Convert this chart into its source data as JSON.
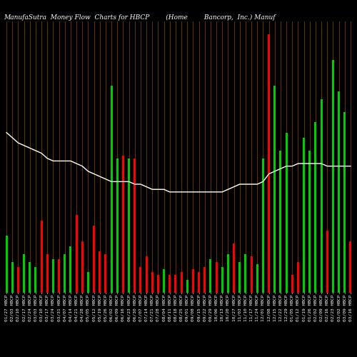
{
  "title": "ManufaSutra  Money Flow  Charts for HBCP        (Home        Bancorp,  Inc.) Manuf",
  "background_color": "#000000",
  "grid_color": "#6b3a00",
  "bar_colors": [
    "#00cc00",
    "#00cc00",
    "#ff0000",
    "#00cc00",
    "#00cc00",
    "#00cc00",
    "#ff0000",
    "#ff0000",
    "#00cc00",
    "#ff0000",
    "#00cc00",
    "#00cc00",
    "#ff0000",
    "#ff0000",
    "#00cc00",
    "#ff0000",
    "#ff0000",
    "#ff0000",
    "#00cc00",
    "#00cc00",
    "#ff0000",
    "#00cc00",
    "#ff0000",
    "#ff0000",
    "#ff0000",
    "#ff0000",
    "#ff0000",
    "#00cc00",
    "#ff0000",
    "#ff0000",
    "#ff0000",
    "#00cc00",
    "#ff0000",
    "#ff0000",
    "#ff0000",
    "#00cc00",
    "#ff0000",
    "#00cc00",
    "#00cc00",
    "#ff0000",
    "#00cc00",
    "#00cc00",
    "#ff0000",
    "#00cc00",
    "#00cc00",
    "#ff0000",
    "#00cc00",
    "#00cc00",
    "#00cc00",
    "#ff0000",
    "#ff0000",
    "#00cc00",
    "#00cc00",
    "#00cc00",
    "#00cc00",
    "#ff0000",
    "#00cc00",
    "#00cc00",
    "#00cc00",
    "#ff0000"
  ],
  "bar_heights": [
    0.22,
    0.12,
    0.1,
    0.15,
    0.12,
    0.1,
    0.28,
    0.15,
    0.13,
    0.13,
    0.15,
    0.18,
    0.3,
    0.2,
    0.08,
    0.26,
    0.16,
    0.15,
    0.8,
    0.52,
    0.53,
    0.52,
    0.52,
    0.1,
    0.14,
    0.08,
    0.07,
    0.09,
    0.07,
    0.07,
    0.08,
    0.05,
    0.09,
    0.08,
    0.1,
    0.13,
    0.12,
    0.1,
    0.15,
    0.19,
    0.12,
    0.15,
    0.14,
    0.11,
    0.52,
    1.0,
    0.8,
    0.55,
    0.62,
    0.07,
    0.12,
    0.6,
    0.55,
    0.66,
    0.75,
    0.24,
    0.9,
    0.78,
    0.7,
    0.2
  ],
  "line_color": "#ffffff",
  "line_data": [
    0.62,
    0.6,
    0.58,
    0.57,
    0.56,
    0.55,
    0.54,
    0.52,
    0.51,
    0.51,
    0.51,
    0.51,
    0.5,
    0.49,
    0.47,
    0.46,
    0.45,
    0.44,
    0.43,
    0.43,
    0.43,
    0.43,
    0.42,
    0.42,
    0.41,
    0.4,
    0.4,
    0.4,
    0.39,
    0.39,
    0.39,
    0.39,
    0.39,
    0.39,
    0.39,
    0.39,
    0.39,
    0.39,
    0.4,
    0.41,
    0.42,
    0.42,
    0.42,
    0.42,
    0.43,
    0.46,
    0.47,
    0.48,
    0.49,
    0.49,
    0.5,
    0.5,
    0.5,
    0.5,
    0.5,
    0.49,
    0.49,
    0.49,
    0.49,
    0.49
  ],
  "tick_labels": [
    "01/27 HBCP",
    "02/03 HBCP",
    "02/10 HBCP",
    "02/17 HBCP",
    "02/24 HBCP",
    "03/03 HBCP",
    "03/10 HBCP",
    "03/17 HBCP",
    "03/24 HBCP",
    "03/31 HBCP",
    "04/07 HBCP",
    "04/14 HBCP",
    "04/21 HBCP",
    "04/28 HBCP",
    "05/05 HBCP",
    "05/12 HBCP",
    "05/19 HBCP",
    "05/26 HBCP",
    "06/02 HBCP",
    "06/09 HBCP",
    "06/16 HBCP",
    "06/23 HBCP",
    "06/30 HBCP",
    "07/07 HBCP",
    "07/14 HBCP",
    "07/21 HBCP",
    "07/28 HBCP",
    "08/04 HBCP",
    "08/11 HBCP",
    "08/18 HBCP",
    "08/25 HBCP",
    "09/01 HBCP",
    "09/08 HBCP",
    "09/15 HBCP",
    "09/22 HBCP",
    "09/29 HBCP",
    "10/06 HBCP",
    "10/13 HBCP",
    "10/20 HBCP",
    "10/27 HBCP",
    "11/03 HBCP",
    "11/10 HBCP",
    "11/17 HBCP",
    "11/24 HBCP",
    "12/01 HBCP",
    "12/08 HBCP",
    "12/15 HBCP",
    "12/22 HBCP",
    "12/29 HBCP",
    "01/05 HBCP",
    "01/12 HBCP",
    "01/19 HBCP",
    "01/26 HBCP",
    "02/02 HBCP",
    "02/09 HBCP",
    "02/16 HBCP",
    "02/23 HBCP",
    "03/02 HBCP",
    "03/09 HBCP",
    "03/16 HBCP"
  ],
  "title_fontsize": 6.5,
  "tick_fontsize": 4.5,
  "ylim": [
    0,
    1.05
  ],
  "xlim": [
    -0.5,
    59.5
  ],
  "figsize": [
    5.0,
    5.0
  ],
  "dpi": 100
}
